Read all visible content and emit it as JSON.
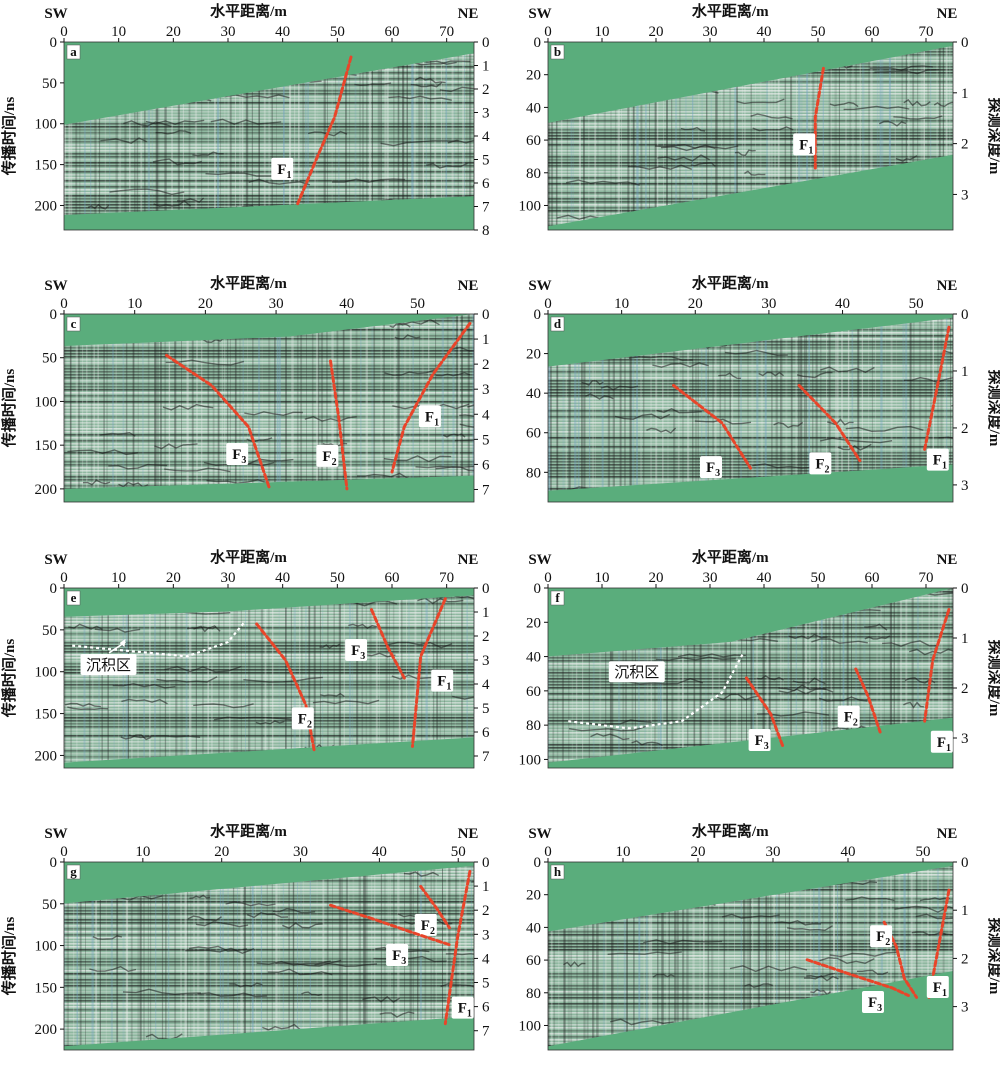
{
  "colors": {
    "background": "#5aad7c",
    "fault_line": "#e8452a",
    "boundary": "#ffffff",
    "radargram_dark": "#1a1a1a",
    "radargram_light": "#f2f2f2"
  },
  "labels": {
    "x_title": "水平距离/m",
    "y_left_title": "传播时间/ns",
    "y_right_title": "探测深度/m",
    "sw": "SW",
    "ne": "NE",
    "sediment_zone": "沉积区",
    "fault_prefix": "F"
  },
  "panels": [
    {
      "id": "a",
      "x_ticks": [
        "0",
        "10",
        "20",
        "30",
        "40",
        "50",
        "60",
        "70"
      ],
      "x_max": 75,
      "time_ticks": [
        "0",
        "50",
        "100",
        "150",
        "200"
      ],
      "time_max": 230,
      "depth_ticks": [
        "0",
        "1",
        "2",
        "3",
        "4",
        "5",
        "6",
        "7",
        "8"
      ],
      "depth_max": 8,
      "faults": [
        {
          "index": "1"
        }
      ]
    },
    {
      "id": "b",
      "x_ticks": [
        "0",
        "10",
        "20",
        "30",
        "40",
        "50",
        "60",
        "70"
      ],
      "x_max": 75,
      "time_ticks": [
        "0",
        "20",
        "40",
        "60",
        "80",
        "100"
      ],
      "time_max": 115,
      "depth_ticks": [
        "0",
        "1",
        "2",
        "3"
      ],
      "depth_max": 3.7,
      "faults": [
        {
          "index": "1"
        }
      ]
    },
    {
      "id": "c",
      "x_ticks": [
        "0",
        "10",
        "20",
        "30",
        "40",
        "50"
      ],
      "x_max": 58,
      "time_ticks": [
        "0",
        "50",
        "100",
        "150",
        "200"
      ],
      "time_max": 215,
      "depth_ticks": [
        "0",
        "1",
        "2",
        "3",
        "4",
        "5",
        "6",
        "7"
      ],
      "depth_max": 7.5,
      "faults": [
        {
          "index": "3"
        },
        {
          "index": "2"
        },
        {
          "index": "1"
        }
      ]
    },
    {
      "id": "d",
      "x_ticks": [
        "0",
        "10",
        "20",
        "30",
        "40",
        "50"
      ],
      "x_max": 55,
      "time_ticks": [
        "0",
        "20",
        "40",
        "60",
        "80"
      ],
      "time_max": 95,
      "depth_ticks": [
        "0",
        "1",
        "2",
        "3"
      ],
      "depth_max": 3.3,
      "faults": [
        {
          "index": "3"
        },
        {
          "index": "2"
        },
        {
          "index": "1"
        }
      ]
    },
    {
      "id": "e",
      "x_ticks": [
        "0",
        "10",
        "20",
        "30",
        "40",
        "50",
        "60",
        "70"
      ],
      "x_max": 75,
      "time_ticks": [
        "0",
        "50",
        "100",
        "150",
        "200"
      ],
      "time_max": 215,
      "depth_ticks": [
        "0",
        "1",
        "2",
        "3",
        "4",
        "5",
        "6",
        "7"
      ],
      "depth_max": 7.5,
      "faults": [
        {
          "index": "2"
        },
        {
          "index": "3"
        },
        {
          "index": "1"
        }
      ]
    },
    {
      "id": "f",
      "x_ticks": [
        "0",
        "10",
        "20",
        "30",
        "40",
        "50",
        "60",
        "70"
      ],
      "x_max": 75,
      "time_ticks": [
        "0",
        "20",
        "40",
        "60",
        "80",
        "100"
      ],
      "time_max": 105,
      "depth_ticks": [
        "0",
        "1",
        "2",
        "3"
      ],
      "depth_max": 3.6,
      "faults": [
        {
          "index": "3"
        },
        {
          "index": "2"
        },
        {
          "index": "1"
        }
      ]
    },
    {
      "id": "g",
      "x_ticks": [
        "0",
        "10",
        "20",
        "30",
        "40",
        "50"
      ],
      "x_max": 52,
      "time_ticks": [
        "0",
        "50",
        "100",
        "150",
        "200"
      ],
      "time_max": 225,
      "depth_ticks": [
        "0",
        "1",
        "2",
        "3",
        "4",
        "5",
        "6",
        "7"
      ],
      "depth_max": 7.8,
      "faults": [
        {
          "index": "2"
        },
        {
          "index": "3"
        },
        {
          "index": "1"
        }
      ]
    },
    {
      "id": "h",
      "x_ticks": [
        "0",
        "10",
        "20",
        "30",
        "40",
        "50"
      ],
      "x_max": 54,
      "time_ticks": [
        "0",
        "20",
        "40",
        "60",
        "80",
        "100"
      ],
      "time_max": 115,
      "depth_ticks": [
        "0",
        "1",
        "2",
        "3"
      ],
      "depth_max": 3.9,
      "faults": [
        {
          "index": "2"
        },
        {
          "index": "3"
        },
        {
          "index": "1"
        }
      ]
    }
  ]
}
